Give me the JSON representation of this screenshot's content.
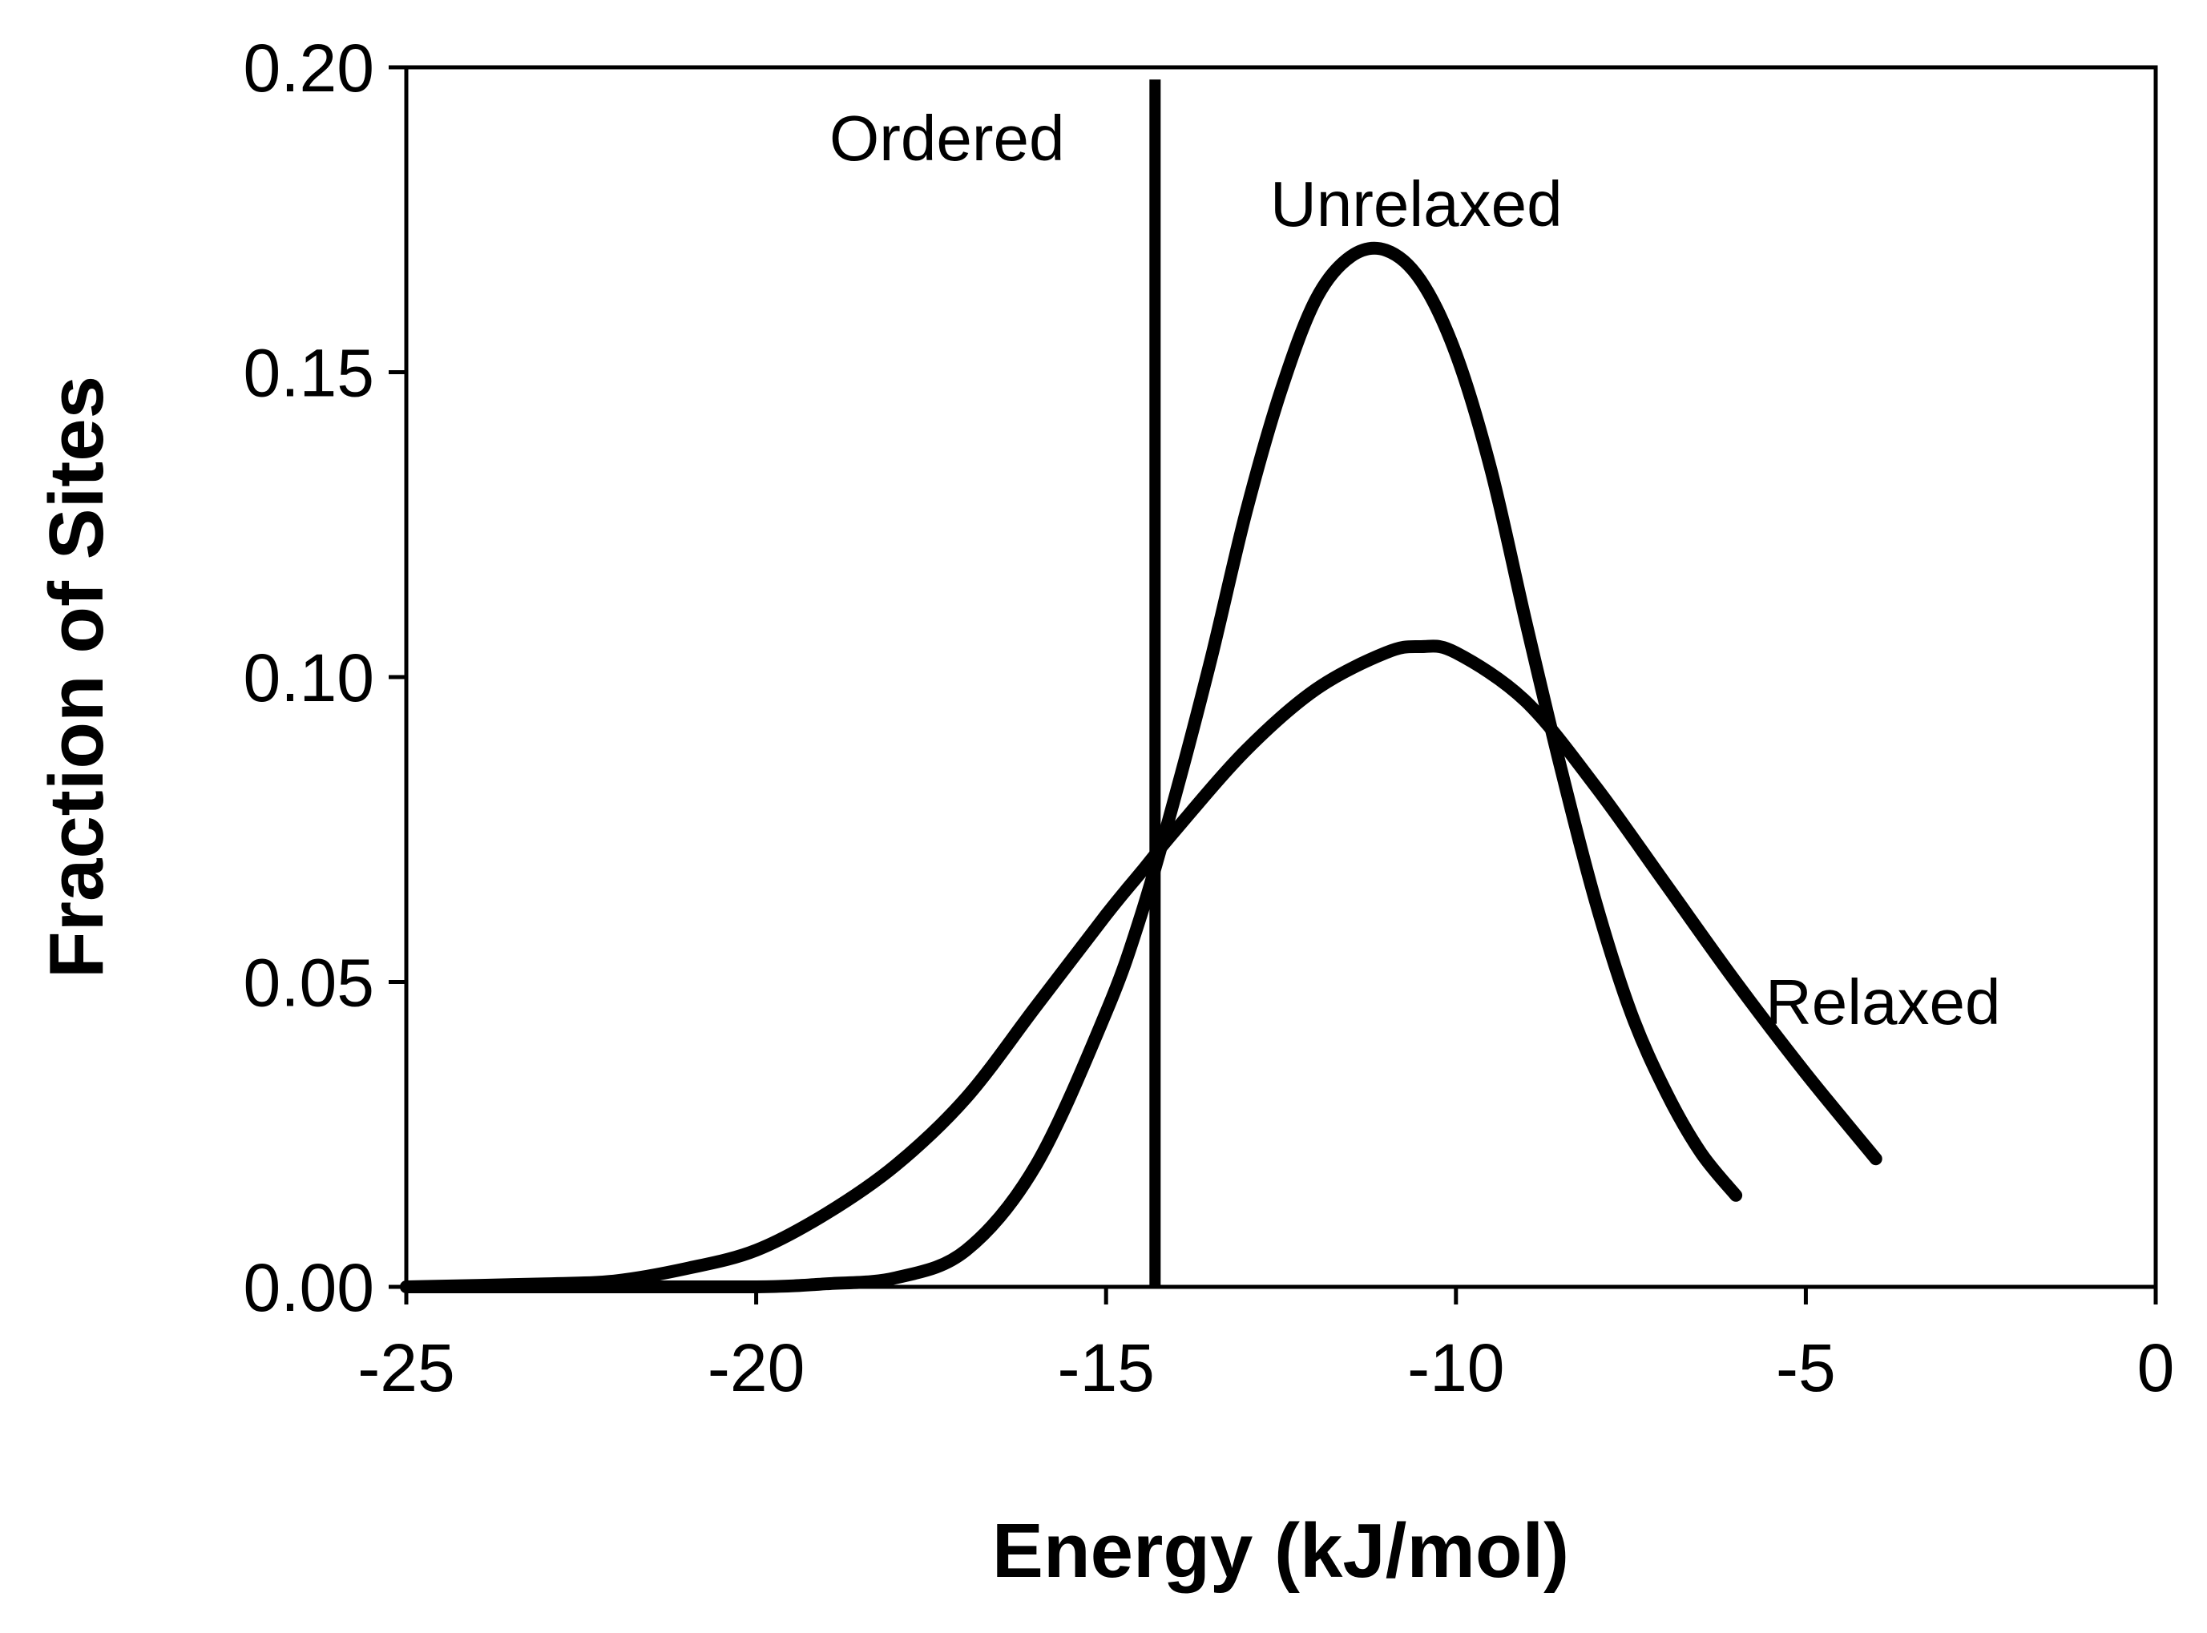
{
  "chart_data": {
    "type": "line",
    "title": "",
    "xlabel": "Energy (kJ/mol)",
    "ylabel": "Fraction of Sites",
    "xlim": [
      -25,
      0
    ],
    "ylim": [
      0,
      0.2
    ],
    "grid": false,
    "x_ticks": [
      {
        "value": -25,
        "label": "-25"
      },
      {
        "value": -20,
        "label": "-20"
      },
      {
        "value": -15,
        "label": "-15"
      },
      {
        "value": -10,
        "label": "-10"
      },
      {
        "value": -5,
        "label": "-5"
      },
      {
        "value": 0,
        "label": "0"
      }
    ],
    "y_ticks": [
      {
        "value": 0.0,
        "label": "0.00"
      },
      {
        "value": 0.05,
        "label": "0.05"
      },
      {
        "value": 0.1,
        "label": "0.10"
      },
      {
        "value": 0.15,
        "label": "0.15"
      },
      {
        "value": 0.2,
        "label": "0.20"
      }
    ],
    "series": [
      {
        "name": "Unrelaxed",
        "x": [
          -25,
          -22,
          -20,
          -19,
          -18,
          -17,
          -16,
          -15,
          -14.5,
          -14,
          -13.5,
          -13,
          -12.5,
          -12,
          -11.5,
          -11,
          -10.5,
          -10,
          -9.5,
          -9,
          -8.5,
          -8,
          -7.5,
          -7,
          -6.5,
          -6
        ],
        "y": [
          0.0,
          0.0,
          0.0,
          0.0005,
          0.0015,
          0.006,
          0.02,
          0.045,
          0.061,
          0.081,
          0.103,
          0.127,
          0.147,
          0.162,
          0.169,
          0.17,
          0.165,
          0.153,
          0.134,
          0.109,
          0.085,
          0.063,
          0.045,
          0.032,
          0.022,
          0.015
        ]
      },
      {
        "name": "Relaxed",
        "x": [
          -25,
          -23,
          -22,
          -21,
          -20,
          -19,
          -18,
          -17,
          -16,
          -15,
          -14.5,
          -14,
          -13,
          -12,
          -11,
          -10.5,
          -10,
          -9,
          -8,
          -7,
          -6,
          -5,
          -4
        ],
        "y": [
          0.0,
          0.0005,
          0.001,
          0.003,
          0.006,
          0.012,
          0.02,
          0.031,
          0.046,
          0.061,
          0.068,
          0.075,
          0.088,
          0.098,
          0.104,
          0.105,
          0.104,
          0.096,
          0.082,
          0.066,
          0.05,
          0.035,
          0.021
        ]
      },
      {
        "name": "Ordered",
        "x": [
          -14.3,
          -14.3
        ],
        "y": [
          0.0,
          0.198
        ]
      }
    ],
    "annotations": [
      {
        "text": "Ordered",
        "series": "Ordered"
      },
      {
        "text": "Unrelaxed",
        "series": "Unrelaxed"
      },
      {
        "text": "Relaxed",
        "series": "Relaxed"
      }
    ]
  }
}
